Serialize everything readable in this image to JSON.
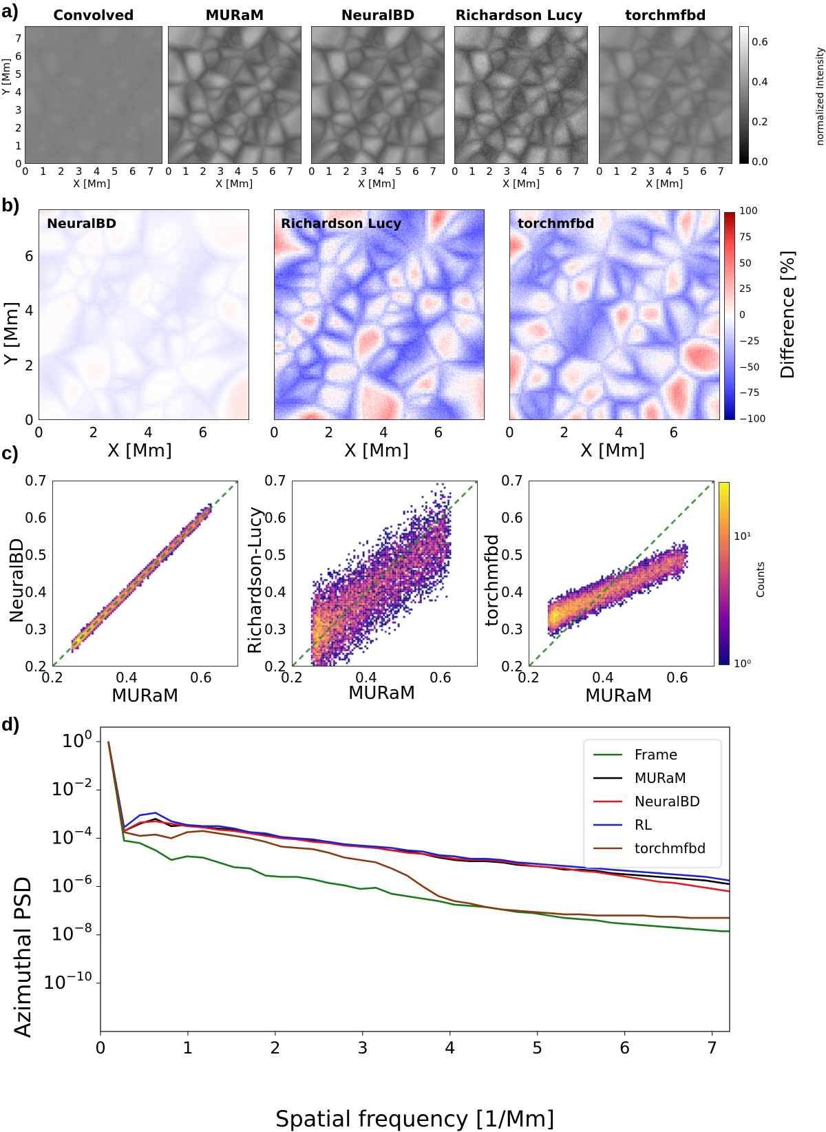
{
  "panels": {
    "a": "a)",
    "b": "b)",
    "c": "c)",
    "d": "d)"
  },
  "chart_data": [
    {
      "id": "a",
      "type": "heatmap",
      "titles": [
        "Convolved",
        "MURaM",
        "NeuralBD",
        "Richardson Lucy",
        "torchmfbd"
      ],
      "xlabel": "X [Mm]",
      "ylabel": "Y [Mm]",
      "xticks": [
        "0",
        "1",
        "2",
        "3",
        "4",
        "5",
        "6",
        "7"
      ],
      "yticks": [
        "0",
        "1",
        "2",
        "3",
        "4",
        "5",
        "6",
        "7"
      ],
      "xlim": [
        0,
        7.7
      ],
      "ylim": [
        0,
        7.7
      ],
      "colorbar": {
        "label": "normalized Intensity",
        "ticks": [
          "0.0",
          "0.2",
          "0.4",
          "0.6"
        ],
        "range": [
          0.0,
          0.68
        ],
        "cmap": "gray"
      },
      "contrast": [
        0.12,
        1.0,
        0.95,
        1.15,
        0.55
      ]
    },
    {
      "id": "b",
      "type": "heatmap",
      "titles": [
        "NeuralBD",
        "Richardson Lucy",
        "torchmfbd"
      ],
      "xlabel": "X [Mm]",
      "ylabel": "Y [Mm]",
      "xticks": [
        "0",
        "2",
        "4",
        "6"
      ],
      "yticks": [
        "0",
        "2",
        "4",
        "6"
      ],
      "xlim": [
        0,
        7.7
      ],
      "ylim": [
        0,
        7.7
      ],
      "colorbar": {
        "label": "Difference [%]",
        "ticks": [
          "100",
          "75",
          "50",
          "25",
          "0",
          "−25",
          "−50",
          "−75",
          "−100"
        ],
        "range": [
          -100,
          100
        ],
        "cmap": "seismic"
      },
      "amplitude": [
        8,
        45,
        38
      ]
    },
    {
      "id": "c",
      "type": "scatter",
      "xlabel": "MURaM",
      "ylabels": [
        "NeuralBD",
        "Richardson-Lucy",
        "torchmfbd"
      ],
      "xticks": [
        "0.2",
        "0.4",
        "0.6"
      ],
      "yticks": [
        "0.2",
        "0.3",
        "0.4",
        "0.5",
        "0.6",
        "0.7"
      ],
      "xlim": [
        0.2,
        0.7
      ],
      "ylim": [
        0.2,
        0.7
      ],
      "reference_line": "y = x",
      "spread": [
        0.012,
        0.07,
        0.035
      ],
      "slope": [
        1.0,
        0.75,
        0.45
      ],
      "colorbar": {
        "label": "Counts",
        "ticks": [
          "10¹",
          "10⁰"
        ],
        "scale": "log",
        "cmap": "plasma"
      }
    },
    {
      "id": "d",
      "type": "line",
      "title": "",
      "xlabel": "Spatial frequency [1/Mm]",
      "ylabel": "Azimuthal PSD",
      "xlim": [
        0,
        7.2
      ],
      "ylog_range": [
        -12,
        0.6
      ],
      "xticks": [
        "0",
        "1",
        "2",
        "3",
        "4",
        "5",
        "6",
        "7"
      ],
      "yticks": [
        {
          "base": "10",
          "exp": "0",
          "v": 0
        },
        {
          "base": "10",
          "exp": "−2",
          "v": -2
        },
        {
          "base": "10",
          "exp": "−4",
          "v": -4
        },
        {
          "base": "10",
          "exp": "−6",
          "v": -6
        },
        {
          "base": "10",
          "exp": "−8",
          "v": -8
        },
        {
          "base": "10",
          "exp": "−10",
          "v": -10
        }
      ],
      "x": [
        0.09,
        0.27,
        0.45,
        0.63,
        0.81,
        0.99,
        1.17,
        1.35,
        1.53,
        1.71,
        1.89,
        2.07,
        2.25,
        2.43,
        2.61,
        2.79,
        2.97,
        3.15,
        3.33,
        3.51,
        3.69,
        3.87,
        4.05,
        4.23,
        4.41,
        4.59,
        4.77,
        4.95,
        5.13,
        5.31,
        5.49,
        5.67,
        5.85,
        6.03,
        6.21,
        6.39,
        6.57,
        6.75,
        6.93,
        7.11,
        7.2
      ],
      "series": [
        {
          "name": "Frame",
          "color": "#1a7a1a",
          "log10": [
            0,
            -4.1,
            -4.2,
            -4.5,
            -4.9,
            -4.75,
            -4.8,
            -5.0,
            -5.2,
            -5.25,
            -5.55,
            -5.6,
            -5.6,
            -5.7,
            -5.85,
            -5.95,
            -6.1,
            -6.05,
            -6.3,
            -6.4,
            -6.5,
            -6.6,
            -6.75,
            -6.8,
            -6.85,
            -6.95,
            -7.05,
            -7.1,
            -7.2,
            -7.3,
            -7.35,
            -7.4,
            -7.5,
            -7.55,
            -7.6,
            -7.65,
            -7.7,
            -7.75,
            -7.8,
            -7.85,
            -7.85
          ]
        },
        {
          "name": "MURaM",
          "color": "#000000",
          "log10": [
            0,
            -3.7,
            -3.4,
            -3.2,
            -3.5,
            -3.45,
            -3.55,
            -3.6,
            -3.65,
            -3.75,
            -3.85,
            -3.95,
            -4.05,
            -4.1,
            -4.15,
            -4.25,
            -4.35,
            -4.4,
            -4.5,
            -4.55,
            -4.65,
            -4.8,
            -4.9,
            -4.95,
            -4.95,
            -5.0,
            -5.1,
            -5.15,
            -5.2,
            -5.3,
            -5.3,
            -5.35,
            -5.45,
            -5.5,
            -5.55,
            -5.6,
            -5.65,
            -5.7,
            -5.75,
            -5.85,
            -5.9
          ]
        },
        {
          "name": "NeuralBD",
          "color": "#e41a1c",
          "log10": [
            0,
            -3.7,
            -3.35,
            -3.3,
            -3.4,
            -3.5,
            -3.55,
            -3.65,
            -3.7,
            -3.8,
            -3.9,
            -4.0,
            -4.05,
            -4.15,
            -4.2,
            -4.3,
            -4.35,
            -4.4,
            -4.5,
            -4.6,
            -4.65,
            -4.75,
            -4.85,
            -4.9,
            -4.9,
            -4.95,
            -5.05,
            -5.15,
            -5.2,
            -5.25,
            -5.35,
            -5.4,
            -5.5,
            -5.6,
            -5.7,
            -5.8,
            -5.85,
            -5.95,
            -6.05,
            -6.15,
            -6.2
          ]
        },
        {
          "name": "RL",
          "color": "#1f1fe0",
          "log10": [
            0,
            -3.55,
            -3.05,
            -2.95,
            -3.3,
            -3.45,
            -3.5,
            -3.5,
            -3.6,
            -3.75,
            -3.8,
            -3.95,
            -4.0,
            -4.05,
            -4.15,
            -4.25,
            -4.3,
            -4.35,
            -4.4,
            -4.5,
            -4.55,
            -4.7,
            -4.75,
            -4.85,
            -4.85,
            -4.9,
            -5.0,
            -5.05,
            -5.1,
            -5.15,
            -5.2,
            -5.25,
            -5.3,
            -5.35,
            -5.4,
            -5.45,
            -5.5,
            -5.55,
            -5.6,
            -5.7,
            -5.75
          ]
        },
        {
          "name": "torchmfbd",
          "color": "#8b3a0f",
          "log10": [
            0,
            -3.75,
            -3.9,
            -3.85,
            -4.0,
            -3.75,
            -3.7,
            -3.8,
            -3.9,
            -4.0,
            -4.15,
            -4.35,
            -4.4,
            -4.45,
            -4.6,
            -4.8,
            -4.9,
            -5.0,
            -5.25,
            -5.55,
            -6.0,
            -6.4,
            -6.6,
            -6.7,
            -6.85,
            -6.95,
            -7.0,
            -7.05,
            -7.1,
            -7.15,
            -7.15,
            -7.2,
            -7.2,
            -7.2,
            -7.2,
            -7.25,
            -7.25,
            -7.3,
            -7.3,
            -7.3,
            -7.3
          ]
        }
      ]
    }
  ]
}
